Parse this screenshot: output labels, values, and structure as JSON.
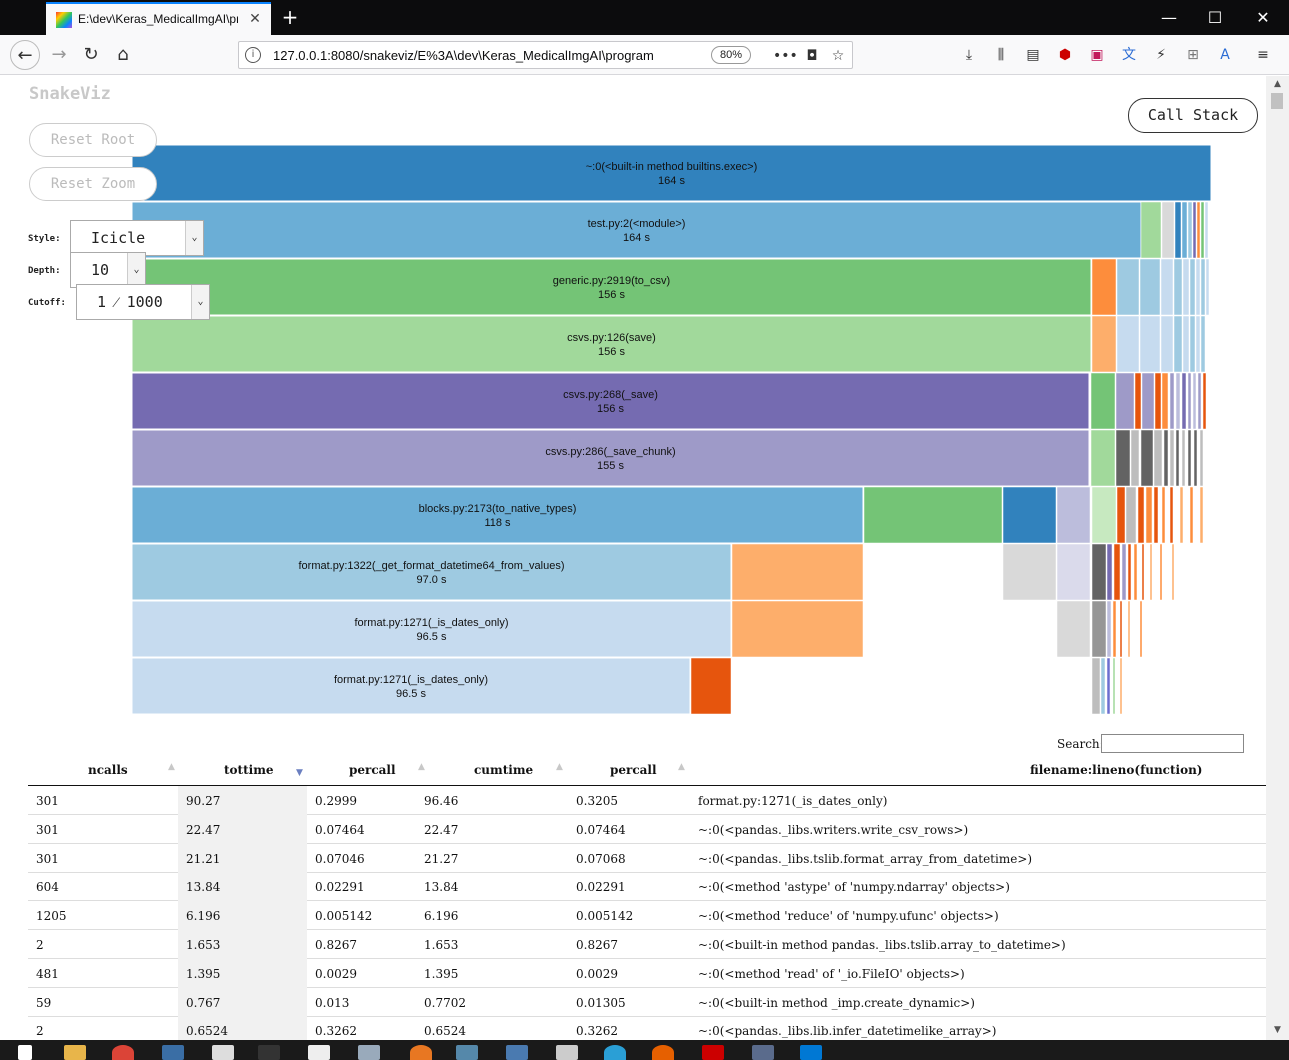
{
  "browser": {
    "tab_title": "E:\\dev\\Keras_MedicalImgAI\\pr",
    "url": "127.0.0.1:8080/snakeviz/E%3A\\dev\\Keras_MedicalImgAI\\program",
    "zoom": "80%"
  },
  "app": {
    "logo": "SnakeViz",
    "reset_root": "Reset Root",
    "reset_zoom": "Reset Zoom",
    "call_stack": "Call Stack",
    "style_label": "Style:",
    "style_value": "Icicle",
    "depth_label": "Depth:",
    "depth_value": "10",
    "cutoff_label": "Cutoff:",
    "cutoff_value": "1 ⁄ 1000"
  },
  "icicle": {
    "rows": [
      {
        "label": "~:0(<built-in method builtins.exec>)",
        "time": "164 s",
        "color": "#3182bd"
      },
      {
        "label": "test.py:2(<module>)",
        "time": "164 s",
        "color": "#6baed6"
      },
      {
        "label": "generic.py:2919(to_csv)",
        "time": "156 s",
        "color": "#74c476"
      },
      {
        "label": "csvs.py:126(save)",
        "time": "156 s",
        "color": "#a1d99b"
      },
      {
        "label": "csvs.py:268(_save)",
        "time": "156 s",
        "color": "#756bb1"
      },
      {
        "label": "csvs.py:286(_save_chunk)",
        "time": "155 s",
        "color": "#9e9ac8"
      },
      {
        "label": "blocks.py:2173(to_native_types)",
        "time": "118 s",
        "color": "#6baed6"
      },
      {
        "label": "format.py:1322(_get_format_datetime64_from_values)",
        "time": "97.0 s",
        "color": "#9ecae1"
      },
      {
        "label": "format.py:1271(_is_dates_only)",
        "time": "96.5 s",
        "color": "#c6dbef"
      },
      {
        "label": "format.py:1271(_is_dates_only)",
        "time": "96.5 s",
        "color": "#c6dbef"
      }
    ]
  },
  "table": {
    "search_label": "Search:",
    "headers": [
      "ncalls",
      "tottime",
      "percall",
      "cumtime",
      "percall",
      "filename:lineno(function)"
    ],
    "rows": [
      [
        "301",
        "90.27",
        "0.2999",
        "96.46",
        "0.3205",
        "format.py:1271(_is_dates_only)"
      ],
      [
        "301",
        "22.47",
        "0.07464",
        "22.47",
        "0.07464",
        "~:0(<pandas._libs.writers.write_csv_rows>)"
      ],
      [
        "301",
        "21.21",
        "0.07046",
        "21.27",
        "0.07068",
        "~:0(<pandas._libs.tslib.format_array_from_datetime>)"
      ],
      [
        "604",
        "13.84",
        "0.02291",
        "13.84",
        "0.02291",
        "~:0(<method 'astype' of 'numpy.ndarray' objects>)"
      ],
      [
        "1205",
        "6.196",
        "0.005142",
        "6.196",
        "0.005142",
        "~:0(<method 'reduce' of 'numpy.ufunc' objects>)"
      ],
      [
        "2",
        "1.653",
        "0.8267",
        "1.653",
        "0.8267",
        "~:0(<built-in method pandas._libs.tslib.array_to_datetime>)"
      ],
      [
        "481",
        "1.395",
        "0.0029",
        "1.395",
        "0.0029",
        "~:0(<method 'read' of '_io.FileIO' objects>)"
      ],
      [
        "59",
        "0.767",
        "0.013",
        "0.7702",
        "0.01305",
        "~:0(<built-in method _imp.create_dynamic>)"
      ],
      [
        "2",
        "0.6524",
        "0.3262",
        "0.6524",
        "0.3262",
        "~:0(<pandas._libs.lib.infer_datetimelike_array>)"
      ]
    ]
  },
  "icons": {
    "back": "arrow-left-icon",
    "forward": "arrow-right-icon",
    "reload": "reload-icon",
    "home": "home-icon",
    "sort": "sort-arrows-icon"
  }
}
